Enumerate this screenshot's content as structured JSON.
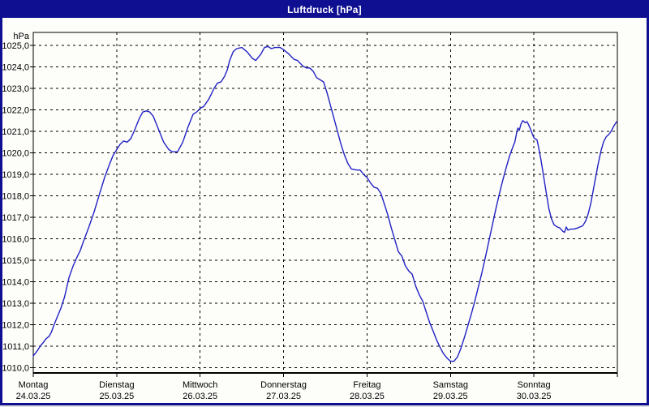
{
  "window": {
    "title": "Luftdruck [hPa]"
  },
  "colors": {
    "window_border": "#0f0f92",
    "titlebar_bg": "#0f0f92",
    "titlebar_text": "#ffffff",
    "plot_bg": "#fdfdfa",
    "grid": "#000000",
    "axis": "#000000",
    "line": "#2121c3",
    "label_text": "#000000"
  },
  "chart_data": {
    "type": "line",
    "title": "Luftdruck [hPa]",
    "grid": "dashed",
    "legend_position": "none",
    "y_axis": {
      "unit": "hPa",
      "min": 1010,
      "max": 1025,
      "tick_step": 1,
      "tick_labels_top_down": [
        "1025,0",
        "1024,0",
        "1023,0",
        "1022,0",
        "1021,0",
        "1020,0",
        "1019,0",
        "1018,0",
        "1017,0",
        "1016,0",
        "1015,0",
        "1014,0",
        "1013,0",
        "1012,0",
        "1011,0",
        "1010,0"
      ]
    },
    "x_axis": {
      "span_hours": 168,
      "days": [
        {
          "label": "Montag",
          "date": "24.03.25"
        },
        {
          "label": "Dienstag",
          "date": "25.03.25"
        },
        {
          "label": "Mittwoch",
          "date": "26.03.25"
        },
        {
          "label": "Donnerstag",
          "date": "27.03.25"
        },
        {
          "label": "Freitag",
          "date": "28.03.25"
        },
        {
          "label": "Samstag",
          "date": "29.03.25"
        },
        {
          "label": "Sonntag",
          "date": "30.03.25"
        }
      ]
    },
    "series": [
      {
        "name": "Luftdruck",
        "color": "#2121c3",
        "points_hours_hpa": [
          [
            0,
            1010.55
          ],
          [
            1,
            1010.75
          ],
          [
            2,
            1011.0
          ],
          [
            3,
            1011.2
          ],
          [
            3.7,
            1011.35
          ],
          [
            4.5,
            1011.45
          ],
          [
            5.2,
            1011.65
          ],
          [
            6,
            1012.0
          ],
          [
            7,
            1012.4
          ],
          [
            7.9,
            1012.75
          ],
          [
            9,
            1013.3
          ],
          [
            10.3,
            1014.2
          ],
          [
            11.5,
            1014.75
          ],
          [
            12.6,
            1015.15
          ],
          [
            13.5,
            1015.45
          ],
          [
            14.5,
            1015.9
          ],
          [
            16,
            1016.55
          ],
          [
            17.5,
            1017.25
          ],
          [
            19,
            1018.05
          ],
          [
            20.5,
            1018.85
          ],
          [
            22,
            1019.5
          ],
          [
            23,
            1019.9
          ],
          [
            24,
            1020.15
          ],
          [
            25,
            1020.4
          ],
          [
            26,
            1020.55
          ],
          [
            27,
            1020.5
          ],
          [
            28,
            1020.65
          ],
          [
            29,
            1021.0
          ],
          [
            30.5,
            1021.6
          ],
          [
            31.5,
            1021.9
          ],
          [
            32.5,
            1021.95
          ],
          [
            33.5,
            1021.9
          ],
          [
            34.5,
            1021.7
          ],
          [
            36,
            1021.1
          ],
          [
            37.5,
            1020.5
          ],
          [
            39,
            1020.15
          ],
          [
            40,
            1020.05
          ],
          [
            41.5,
            1020.05
          ],
          [
            43,
            1020.5
          ],
          [
            44.5,
            1021.2
          ],
          [
            46,
            1021.8
          ],
          [
            47,
            1021.9
          ],
          [
            47.6,
            1022.0
          ],
          [
            48.3,
            1022.1
          ],
          [
            49,
            1022.15
          ],
          [
            50.5,
            1022.5
          ],
          [
            52,
            1023.0
          ],
          [
            53,
            1023.25
          ],
          [
            54,
            1023.3
          ],
          [
            55,
            1023.55
          ],
          [
            55.8,
            1023.85
          ],
          [
            56.5,
            1024.3
          ],
          [
            57.5,
            1024.7
          ],
          [
            58.5,
            1024.85
          ],
          [
            60,
            1024.9
          ],
          [
            61.5,
            1024.7
          ],
          [
            63,
            1024.4
          ],
          [
            64,
            1024.3
          ],
          [
            65.5,
            1024.6
          ],
          [
            66.5,
            1024.9
          ],
          [
            67.5,
            1024.95
          ],
          [
            68.5,
            1024.85
          ],
          [
            69.5,
            1024.9
          ],
          [
            71,
            1024.9
          ],
          [
            72,
            1024.8
          ],
          [
            73.5,
            1024.6
          ],
          [
            75,
            1024.35
          ],
          [
            76,
            1024.3
          ],
          [
            77.5,
            1024.05
          ],
          [
            78.5,
            1023.95
          ],
          [
            79.5,
            1023.95
          ],
          [
            80.5,
            1023.8
          ],
          [
            81.5,
            1023.5
          ],
          [
            82.5,
            1023.4
          ],
          [
            83.5,
            1023.3
          ],
          [
            84.5,
            1022.8
          ],
          [
            85.5,
            1022.2
          ],
          [
            86.5,
            1021.6
          ],
          [
            87.5,
            1021.0
          ],
          [
            88.5,
            1020.4
          ],
          [
            89.5,
            1019.9
          ],
          [
            90.5,
            1019.5
          ],
          [
            91.5,
            1019.25
          ],
          [
            93,
            1019.2
          ],
          [
            94,
            1019.2
          ],
          [
            95,
            1019.0
          ],
          [
            96,
            1018.85
          ],
          [
            97,
            1018.6
          ],
          [
            98,
            1018.4
          ],
          [
            99,
            1018.35
          ],
          [
            100,
            1018.1
          ],
          [
            101,
            1017.6
          ],
          [
            102,
            1017.1
          ],
          [
            103,
            1016.5
          ],
          [
            104,
            1015.95
          ],
          [
            105,
            1015.4
          ],
          [
            106,
            1015.2
          ],
          [
            107,
            1014.75
          ],
          [
            108,
            1014.5
          ],
          [
            109,
            1014.35
          ],
          [
            110,
            1013.8
          ],
          [
            111,
            1013.4
          ],
          [
            112,
            1013.1
          ],
          [
            113,
            1012.6
          ],
          [
            114,
            1012.1
          ],
          [
            115,
            1011.7
          ],
          [
            116,
            1011.3
          ],
          [
            117,
            1010.95
          ],
          [
            118,
            1010.65
          ],
          [
            119,
            1010.45
          ],
          [
            120,
            1010.3
          ],
          [
            121,
            1010.3
          ],
          [
            122,
            1010.5
          ],
          [
            123,
            1010.9
          ],
          [
            124,
            1011.4
          ],
          [
            125,
            1011.95
          ],
          [
            126,
            1012.5
          ],
          [
            127,
            1013.1
          ],
          [
            128,
            1013.75
          ],
          [
            129,
            1014.4
          ],
          [
            130,
            1015.1
          ],
          [
            131,
            1015.85
          ],
          [
            132,
            1016.6
          ],
          [
            133,
            1017.35
          ],
          [
            134,
            1018.05
          ],
          [
            135,
            1018.7
          ],
          [
            136,
            1019.3
          ],
          [
            137,
            1019.85
          ],
          [
            138,
            1020.3
          ],
          [
            138.5,
            1020.5
          ],
          [
            139,
            1020.9
          ],
          [
            139.4,
            1021.15
          ],
          [
            139.8,
            1021.05
          ],
          [
            140.3,
            1021.35
          ],
          [
            140.8,
            1021.5
          ],
          [
            141.5,
            1021.4
          ],
          [
            142,
            1021.45
          ],
          [
            142.5,
            1021.3
          ],
          [
            143,
            1021.1
          ],
          [
            143.5,
            1020.9
          ],
          [
            144,
            1020.7
          ],
          [
            144.4,
            1020.65
          ],
          [
            144.9,
            1020.6
          ],
          [
            145.3,
            1020.3
          ],
          [
            146,
            1019.7
          ],
          [
            146.7,
            1019.0
          ],
          [
            147.5,
            1018.2
          ],
          [
            148.3,
            1017.4
          ],
          [
            149,
            1016.95
          ],
          [
            149.8,
            1016.65
          ],
          [
            150.7,
            1016.55
          ],
          [
            151.5,
            1016.5
          ],
          [
            152.3,
            1016.35
          ],
          [
            152.8,
            1016.3
          ],
          [
            153.3,
            1016.55
          ],
          [
            153.8,
            1016.4
          ],
          [
            154.5,
            1016.45
          ],
          [
            155.5,
            1016.45
          ],
          [
            156.5,
            1016.5
          ],
          [
            157.3,
            1016.55
          ],
          [
            158,
            1016.6
          ],
          [
            158.8,
            1016.8
          ],
          [
            159.5,
            1017.1
          ],
          [
            160.3,
            1017.6
          ],
          [
            161,
            1018.2
          ],
          [
            161.8,
            1018.9
          ],
          [
            162.5,
            1019.5
          ],
          [
            163.3,
            1020.1
          ],
          [
            164,
            1020.5
          ],
          [
            164.8,
            1020.75
          ],
          [
            165.5,
            1020.85
          ],
          [
            166.2,
            1021.0
          ],
          [
            167,
            1021.25
          ],
          [
            167.8,
            1021.45
          ]
        ]
      }
    ]
  }
}
